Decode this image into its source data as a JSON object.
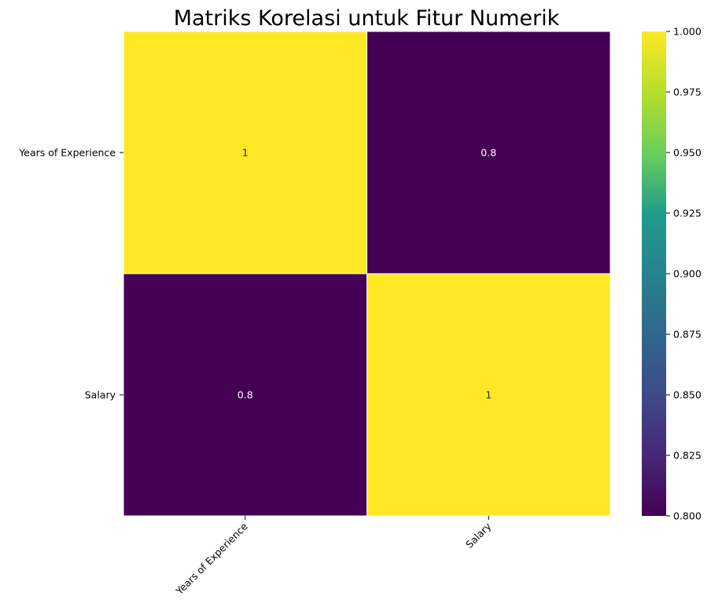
{
  "chart_data": {
    "type": "heatmap",
    "title": "Matriks Korelasi untuk Fitur Numerik",
    "x_categories": [
      "Years of Experience",
      "Salary"
    ],
    "y_categories": [
      "Years of Experience",
      "Salary"
    ],
    "values": [
      [
        1.0,
        0.8
      ],
      [
        0.8,
        1.0
      ]
    ],
    "cell_labels": [
      [
        "1",
        "0.8"
      ],
      [
        "0.8",
        "1"
      ]
    ],
    "colormap": "viridis",
    "colorbar": {
      "min": 0.8,
      "max": 1.0,
      "ticks": [
        0.8,
        0.825,
        0.85,
        0.875,
        0.9,
        0.925,
        0.95,
        0.975,
        1.0
      ],
      "tick_labels": [
        "0.800",
        "0.825",
        "0.850",
        "0.875",
        "0.900",
        "0.925",
        "0.950",
        "0.975",
        "1.000"
      ]
    },
    "x_tick_rotation": "45 degrees",
    "cell_divider_color": "#ffffff"
  }
}
